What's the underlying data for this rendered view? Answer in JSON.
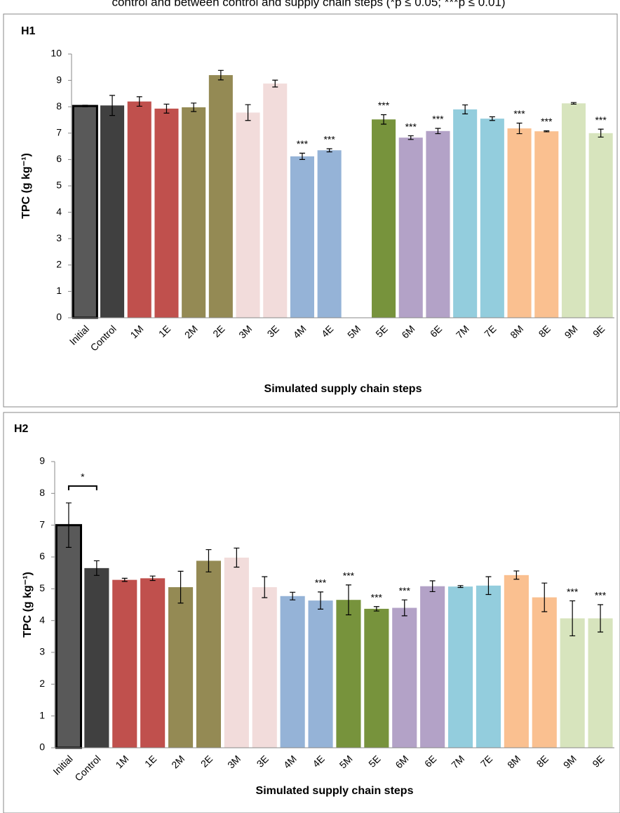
{
  "caption": "control and between control and supply chain steps (*p ≤ 0.05; ***p ≤ 0.01)",
  "chart_data": [
    {
      "type": "bar",
      "title": "H1",
      "xlabel": "Simulated supply chain steps",
      "ylabel": "TPC (g kg⁻¹)",
      "categories": [
        "Initial",
        "Control",
        "1M",
        "1E",
        "2M",
        "2E",
        "3M",
        "3E",
        "4M",
        "4E",
        "5M",
        "5E",
        "6M",
        "6E",
        "7M",
        "7E",
        "8M",
        "8E",
        "9M",
        "9E"
      ],
      "values": [
        8.03,
        8.05,
        8.2,
        7.93,
        7.98,
        9.2,
        7.78,
        8.88,
        6.12,
        6.35,
        null,
        7.52,
        6.83,
        7.08,
        7.9,
        7.55,
        7.18,
        7.07,
        8.13,
        7.0
      ],
      "errors": [
        0.03,
        0.38,
        0.18,
        0.17,
        0.16,
        0.18,
        0.3,
        0.13,
        0.12,
        0.06,
        null,
        0.18,
        0.07,
        0.1,
        0.17,
        0.07,
        0.2,
        0.02,
        0.03,
        0.15
      ],
      "colors": [
        "#595959",
        "#404040",
        "#c0504d",
        "#c0504d",
        "#948a54",
        "#948a54",
        "#f2dcdb",
        "#f2dcdb",
        "#95b3d7",
        "#95b3d7",
        "#77933c",
        "#77933c",
        "#b3a2c7",
        "#b3a2c7",
        "#93cddd",
        "#93cddd",
        "#fac090",
        "#fac090",
        "#d7e4bd",
        "#d7e4bd"
      ],
      "significance": [
        null,
        null,
        null,
        null,
        null,
        null,
        null,
        null,
        "***",
        "***",
        null,
        "***",
        "***",
        "***",
        null,
        null,
        "***",
        "***",
        null,
        "***"
      ],
      "ylim": [
        0,
        10
      ],
      "yticks": [
        0,
        1,
        2,
        3,
        4,
        5,
        6,
        7,
        8,
        9,
        10
      ]
    },
    {
      "type": "bar",
      "title": "H2",
      "xlabel": "Simulated supply chain steps",
      "ylabel": "TPC (g kg⁻¹)",
      "categories": [
        "Initial",
        "Control",
        "1M",
        "1E",
        "2M",
        "2E",
        "3M",
        "3E",
        "4M",
        "4E",
        "5M",
        "5E",
        "6M",
        "6E",
        "7M",
        "7E",
        "8M",
        "8E",
        "9M",
        "9E"
      ],
      "values": [
        7.0,
        5.65,
        5.28,
        5.33,
        5.05,
        5.88,
        5.98,
        5.05,
        4.77,
        4.63,
        4.65,
        4.37,
        4.4,
        5.08,
        5.07,
        5.1,
        5.43,
        4.73,
        4.07,
        4.07
      ],
      "errors": [
        0.7,
        0.23,
        0.05,
        0.07,
        0.5,
        0.35,
        0.3,
        0.33,
        0.12,
        0.27,
        0.47,
        0.07,
        0.25,
        0.17,
        0.03,
        0.28,
        0.13,
        0.45,
        0.55,
        0.43
      ],
      "colors": [
        "#595959",
        "#404040",
        "#c0504d",
        "#c0504d",
        "#948a54",
        "#948a54",
        "#f2dcdb",
        "#f2dcdb",
        "#95b3d7",
        "#95b3d7",
        "#77933c",
        "#77933c",
        "#b3a2c7",
        "#b3a2c7",
        "#93cddd",
        "#93cddd",
        "#fac090",
        "#fac090",
        "#d7e4bd",
        "#d7e4bd"
      ],
      "significance": [
        null,
        null,
        null,
        null,
        null,
        null,
        null,
        null,
        null,
        "***",
        "***",
        "***",
        "***",
        null,
        null,
        null,
        null,
        null,
        "***",
        "***"
      ],
      "bracket_label": "*",
      "ylim": [
        0,
        9
      ],
      "yticks": [
        0,
        1,
        2,
        3,
        4,
        5,
        6,
        7,
        8,
        9
      ]
    }
  ]
}
